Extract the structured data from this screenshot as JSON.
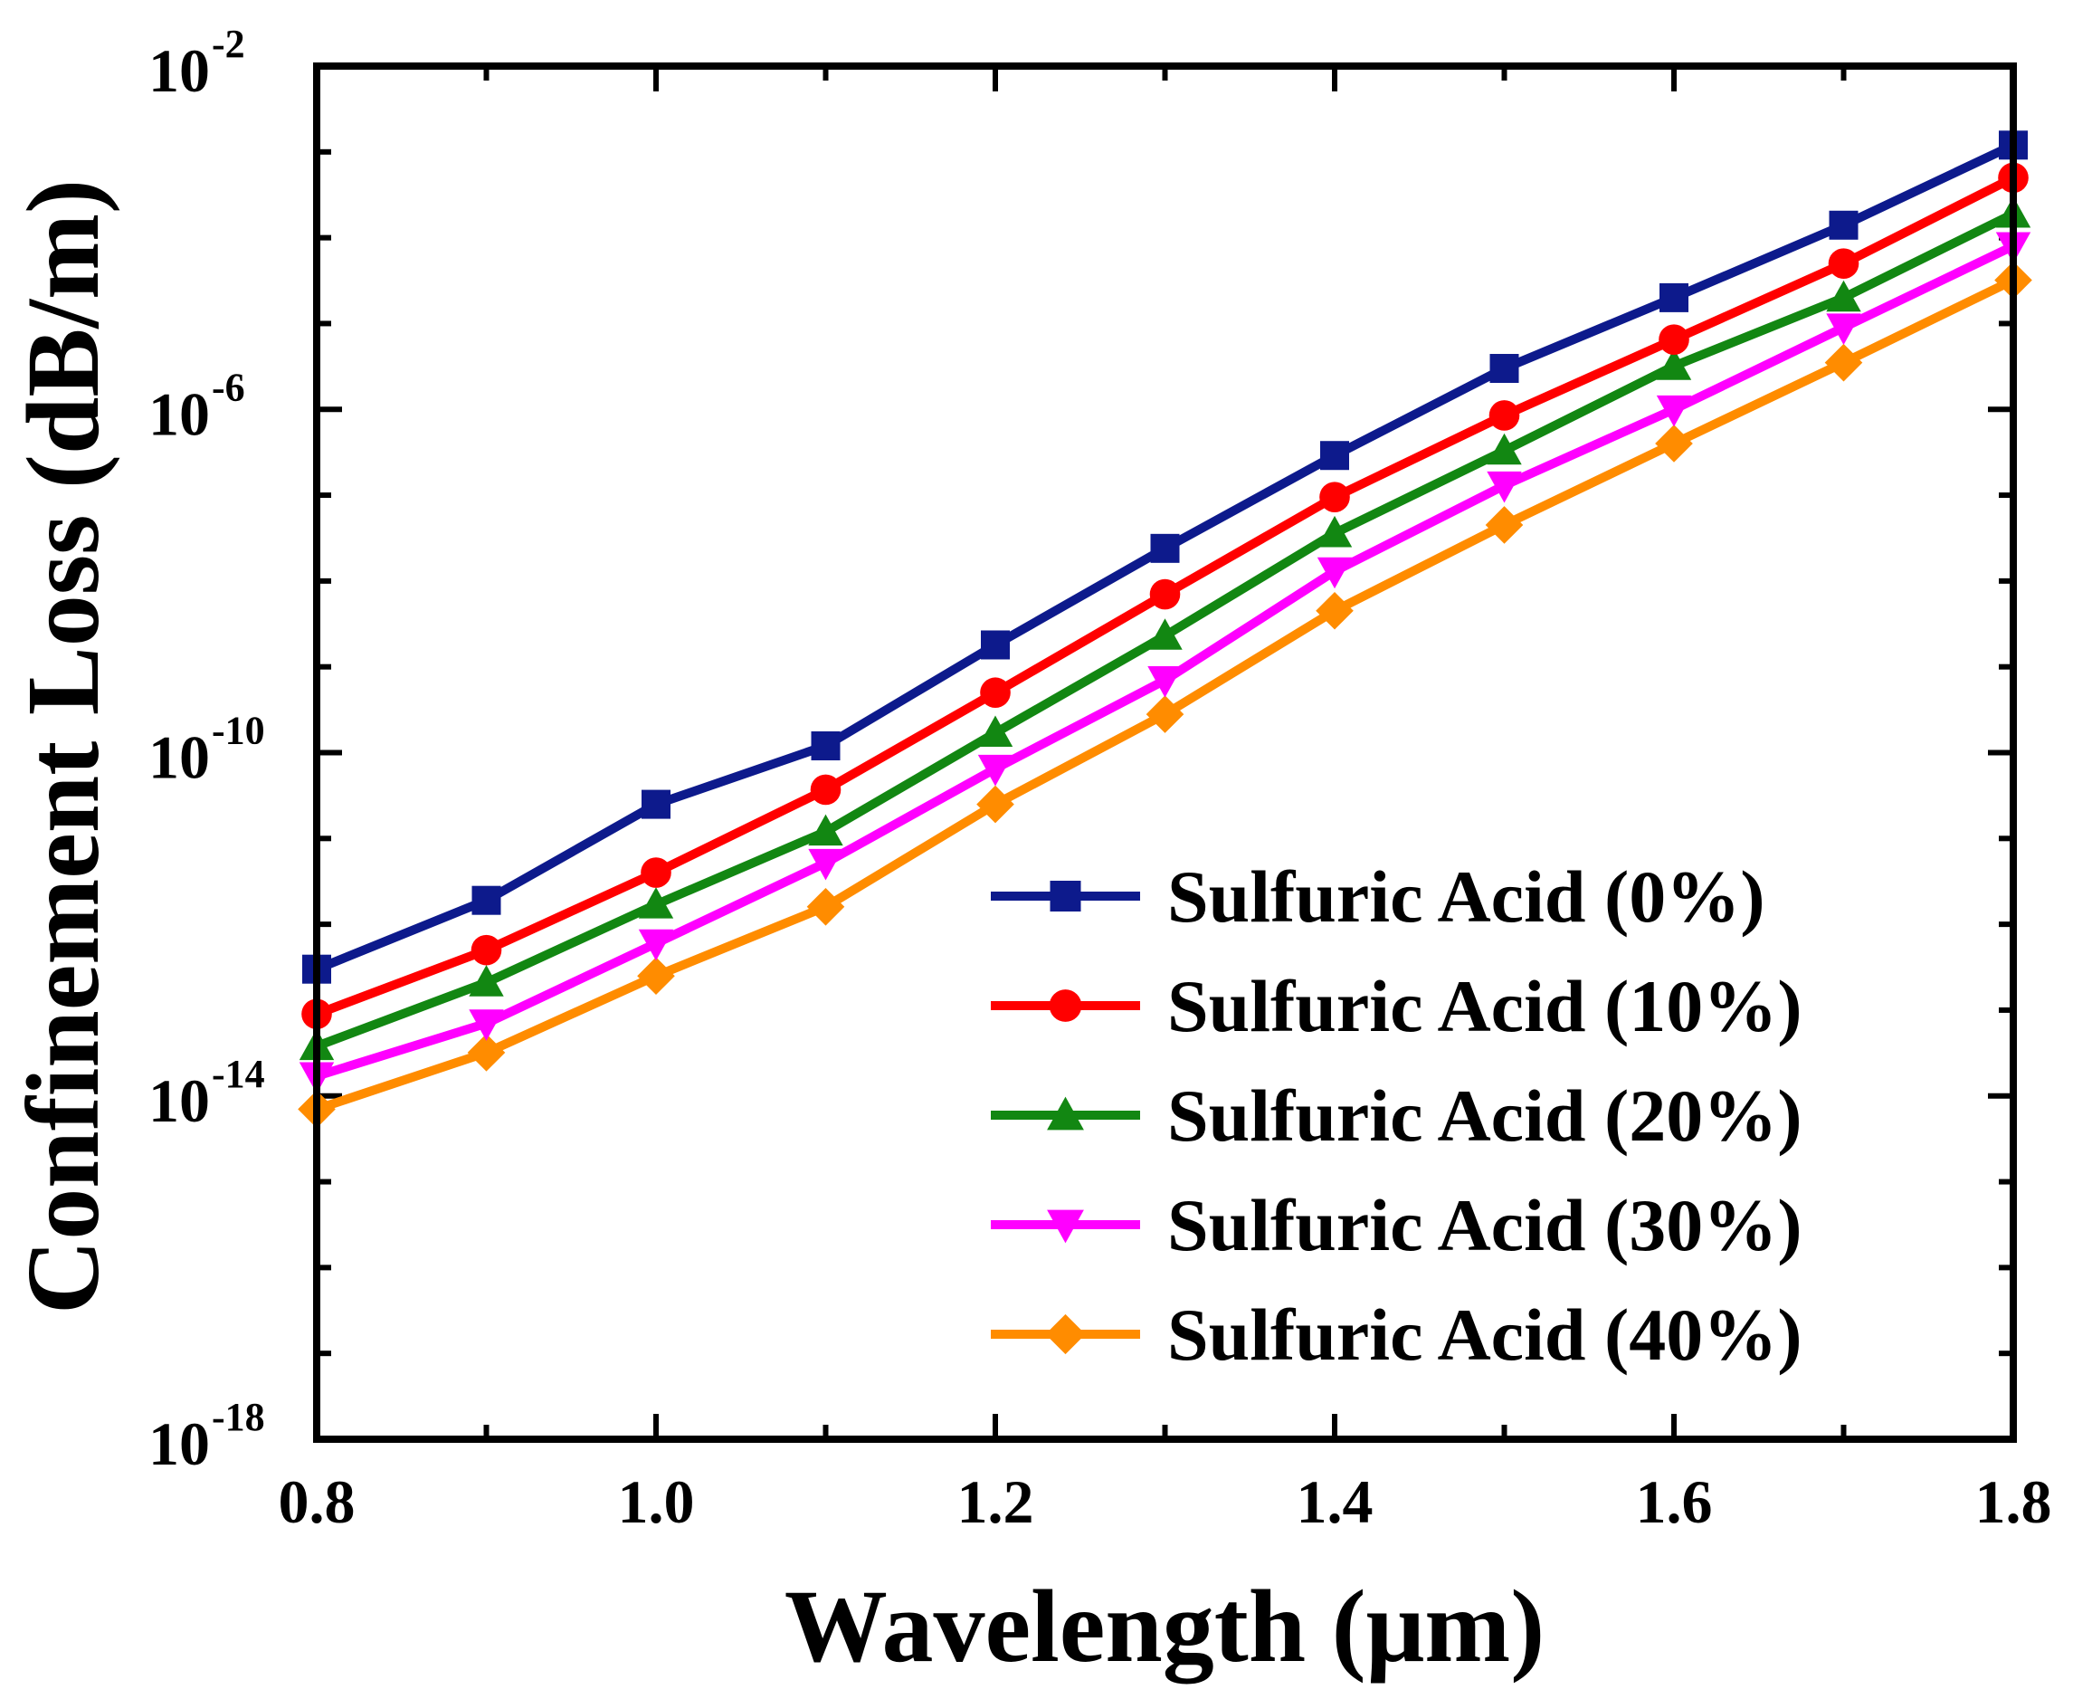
{
  "chart_data": {
    "type": "line",
    "xlabel": "Wavelength (μm)",
    "ylabel": "Confinement Loss (dB/m)",
    "yscale": "log",
    "xlim": [
      0.8,
      1.8
    ],
    "ylim_exp": [
      -18,
      -2
    ],
    "x_ticks": [
      "0.8",
      "1.0",
      "1.2",
      "1.4",
      "1.6",
      "1.8"
    ],
    "y_ticks": [
      {
        "base": "10",
        "exp": "-2"
      },
      {
        "base": "10",
        "exp": "-6"
      },
      {
        "base": "10",
        "exp": "-10"
      },
      {
        "base": "10",
        "exp": "-14"
      },
      {
        "base": "10",
        "exp": "-18"
      }
    ],
    "grid": false,
    "legend_position": "bottom-right",
    "x": [
      0.8,
      0.9,
      1.0,
      1.1,
      1.2,
      1.3,
      1.4,
      1.5,
      1.6,
      1.7,
      1.8
    ],
    "series": [
      {
        "name": "Sulfuric Acid (0%)",
        "color": "#0d1a8c",
        "marker": "square",
        "values": [
          3e-13,
          1.9e-12,
          2.5e-11,
          1.2e-10,
          1.8e-09,
          2.4e-08,
          2.9e-07,
          3e-06,
          2e-05,
          0.00014,
          0.0012
        ]
      },
      {
        "name": "Sulfuric Acid (10%)",
        "color": "#ff0000",
        "marker": "circle",
        "values": [
          9e-14,
          5e-13,
          4e-12,
          3.7e-11,
          5e-10,
          7e-09,
          9.5e-08,
          8.5e-07,
          6.5e-06,
          5e-05,
          0.0005
        ]
      },
      {
        "name": "Sulfuric Acid (20%)",
        "color": "#128712",
        "marker": "triangle-up",
        "values": [
          3.8e-14,
          2.1e-13,
          1.7e-12,
          1.2e-11,
          1.7e-10,
          2.3e-09,
          3.6e-08,
          3.3e-07,
          3.2e-06,
          2e-05,
          0.00019
        ]
      },
      {
        "name": "Sulfuric Acid (30%)",
        "color": "#ff00ff",
        "marker": "triangle-down",
        "values": [
          1.7e-14,
          7e-14,
          6e-13,
          5.2e-12,
          6.5e-11,
          7e-10,
          1.3e-08,
          1.3e-07,
          1e-06,
          9e-06,
          8e-05
        ]
      },
      {
        "name": "Sulfuric Acid (40%)",
        "color": "#ff8c00",
        "marker": "diamond",
        "values": [
          7e-15,
          3.2e-14,
          2.5e-13,
          1.6e-12,
          2.5e-11,
          2.8e-10,
          4.5e-09,
          4.5e-08,
          4e-07,
          3.5e-06,
          3.2e-05
        ]
      }
    ]
  }
}
